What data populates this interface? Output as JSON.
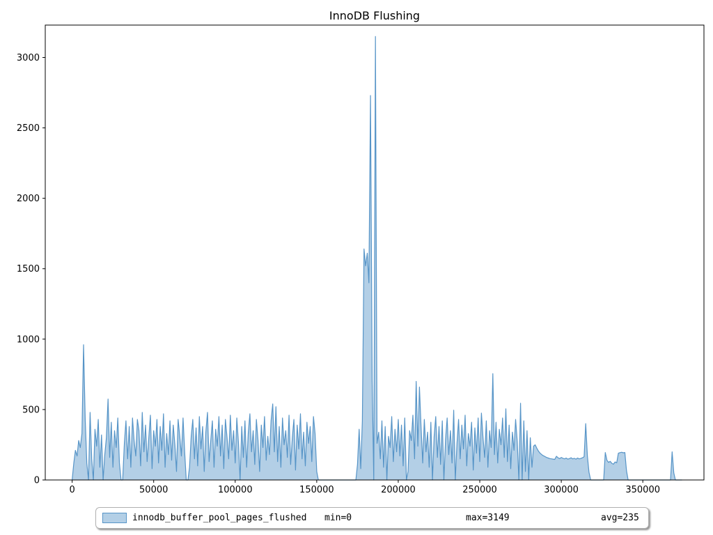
{
  "chart_data": {
    "type": "area",
    "title": "InnoDB Flushing",
    "xlabel": "",
    "ylabel": "",
    "xlim": [
      -16500,
      387500
    ],
    "ylim": [
      0,
      3230
    ],
    "x_ticks": [
      0,
      50000,
      100000,
      150000,
      200000,
      250000,
      300000,
      350000
    ],
    "y_ticks": [
      0,
      500,
      1000,
      1500,
      2000,
      2500,
      3000
    ],
    "grid": false,
    "legend_position": "bottom-center",
    "line_color": "#5694c7",
    "fill_color": "rgba(86,148,199,0.45)",
    "series": [
      {
        "name": "innodb_buffer_pool_pages_flushed",
        "stats": {
          "min": 0,
          "max": 3149,
          "avg": 235
        },
        "x_start": 0,
        "x_step": 1000,
        "values": [
          0,
          120,
          210,
          170,
          280,
          230,
          330,
          960,
          430,
          120,
          0,
          480,
          150,
          0,
          360,
          240,
          430,
          90,
          320,
          0,
          180,
          300,
          575,
          160,
          410,
          90,
          350,
          230,
          440,
          120,
          0,
          0,
          260,
          420,
          150,
          380,
          90,
          440,
          280,
          170,
          430,
          350,
          100,
          480,
          200,
          390,
          130,
          300,
          460,
          80,
          350,
          240,
          430,
          120,
          380,
          210,
          470,
          90,
          330,
          180,
          420,
          140,
          390,
          250,
          60,
          430,
          310,
          170,
          440,
          200,
          0,
          0,
          90,
          310,
          430,
          150,
          370,
          100,
          450,
          220,
          380,
          60,
          340,
          480,
          130,
          280,
          420,
          90,
          360,
          240,
          450,
          170,
          390,
          80,
          430,
          300,
          150,
          460,
          210,
          350,
          120,
          440,
          260,
          0,
          380,
          160,
          420,
          90,
          330,
          470,
          200,
          350,
          110,
          430,
          280,
          60,
          390,
          230,
          450,
          140,
          310,
          180,
          420,
          540,
          200,
          520,
          130,
          380,
          90,
          440,
          250,
          350,
          160,
          460,
          110,
          300,
          430,
          70,
          390,
          220,
          470,
          150,
          340,
          100,
          410,
          260,
          380,
          130,
          450,
          330,
          60,
          0,
          0,
          0,
          0,
          0,
          0,
          0,
          0,
          0,
          0,
          0,
          0,
          0,
          0,
          0,
          0,
          0,
          0,
          0,
          0,
          0,
          0,
          0,
          0,
          110,
          360,
          80,
          420,
          1640,
          1520,
          1610,
          1400,
          2730,
          700,
          0,
          3149,
          260,
          340,
          150,
          420,
          90,
          380,
          0,
          310,
          230,
          450,
          130,
          360,
          200,
          430,
          170,
          390,
          100,
          440,
          0,
          60,
          350,
          280,
          460,
          150,
          700,
          240,
          660,
          380,
          120,
          430,
          200,
          340,
          90,
          410,
          0,
          310,
          450,
          160,
          380,
          110,
          420,
          0,
          290,
          440,
          180,
          350,
          120,
          495,
          0,
          260,
          430,
          150,
          390,
          220,
          460,
          100,
          330,
          240,
          410,
          70,
          370,
          190,
          440,
          130,
          475,
          300,
          160,
          420,
          90,
          350,
          230,
          755,
          180,
          410,
          120,
          360,
          250,
          440,
          160,
          505,
          130,
          390,
          80,
          340,
          210,
          430,
          270,
          0,
          545,
          0,
          420,
          60,
          350,
          0,
          300,
          90,
          240,
          250,
          225,
          205,
          190,
          180,
          172,
          166,
          160,
          156,
          152,
          150,
          148,
          146,
          168,
          158,
          152,
          160,
          154,
          150,
          156,
          148,
          152,
          158,
          150,
          154,
          148,
          156,
          150,
          153,
          158,
          165,
          400,
          170,
          55,
          0,
          0,
          0,
          0,
          0,
          0,
          0,
          0,
          0,
          195,
          140,
          125,
          132,
          118,
          112,
          128,
          122,
          190,
          194,
          197,
          193,
          195,
          65,
          0,
          0,
          0,
          0,
          0,
          0,
          0,
          0,
          0,
          0,
          0,
          0,
          0,
          0,
          0,
          0,
          0,
          0,
          0,
          0,
          0,
          0,
          0,
          0,
          0,
          0,
          0,
          200,
          50,
          0,
          0,
          0,
          0,
          0
        ]
      }
    ]
  },
  "legend": {
    "series_label": "innodb_buffer_pool_pages_flushed",
    "min_label": "min=0",
    "max_label": "max=3149",
    "avg_label": "avg=235"
  }
}
